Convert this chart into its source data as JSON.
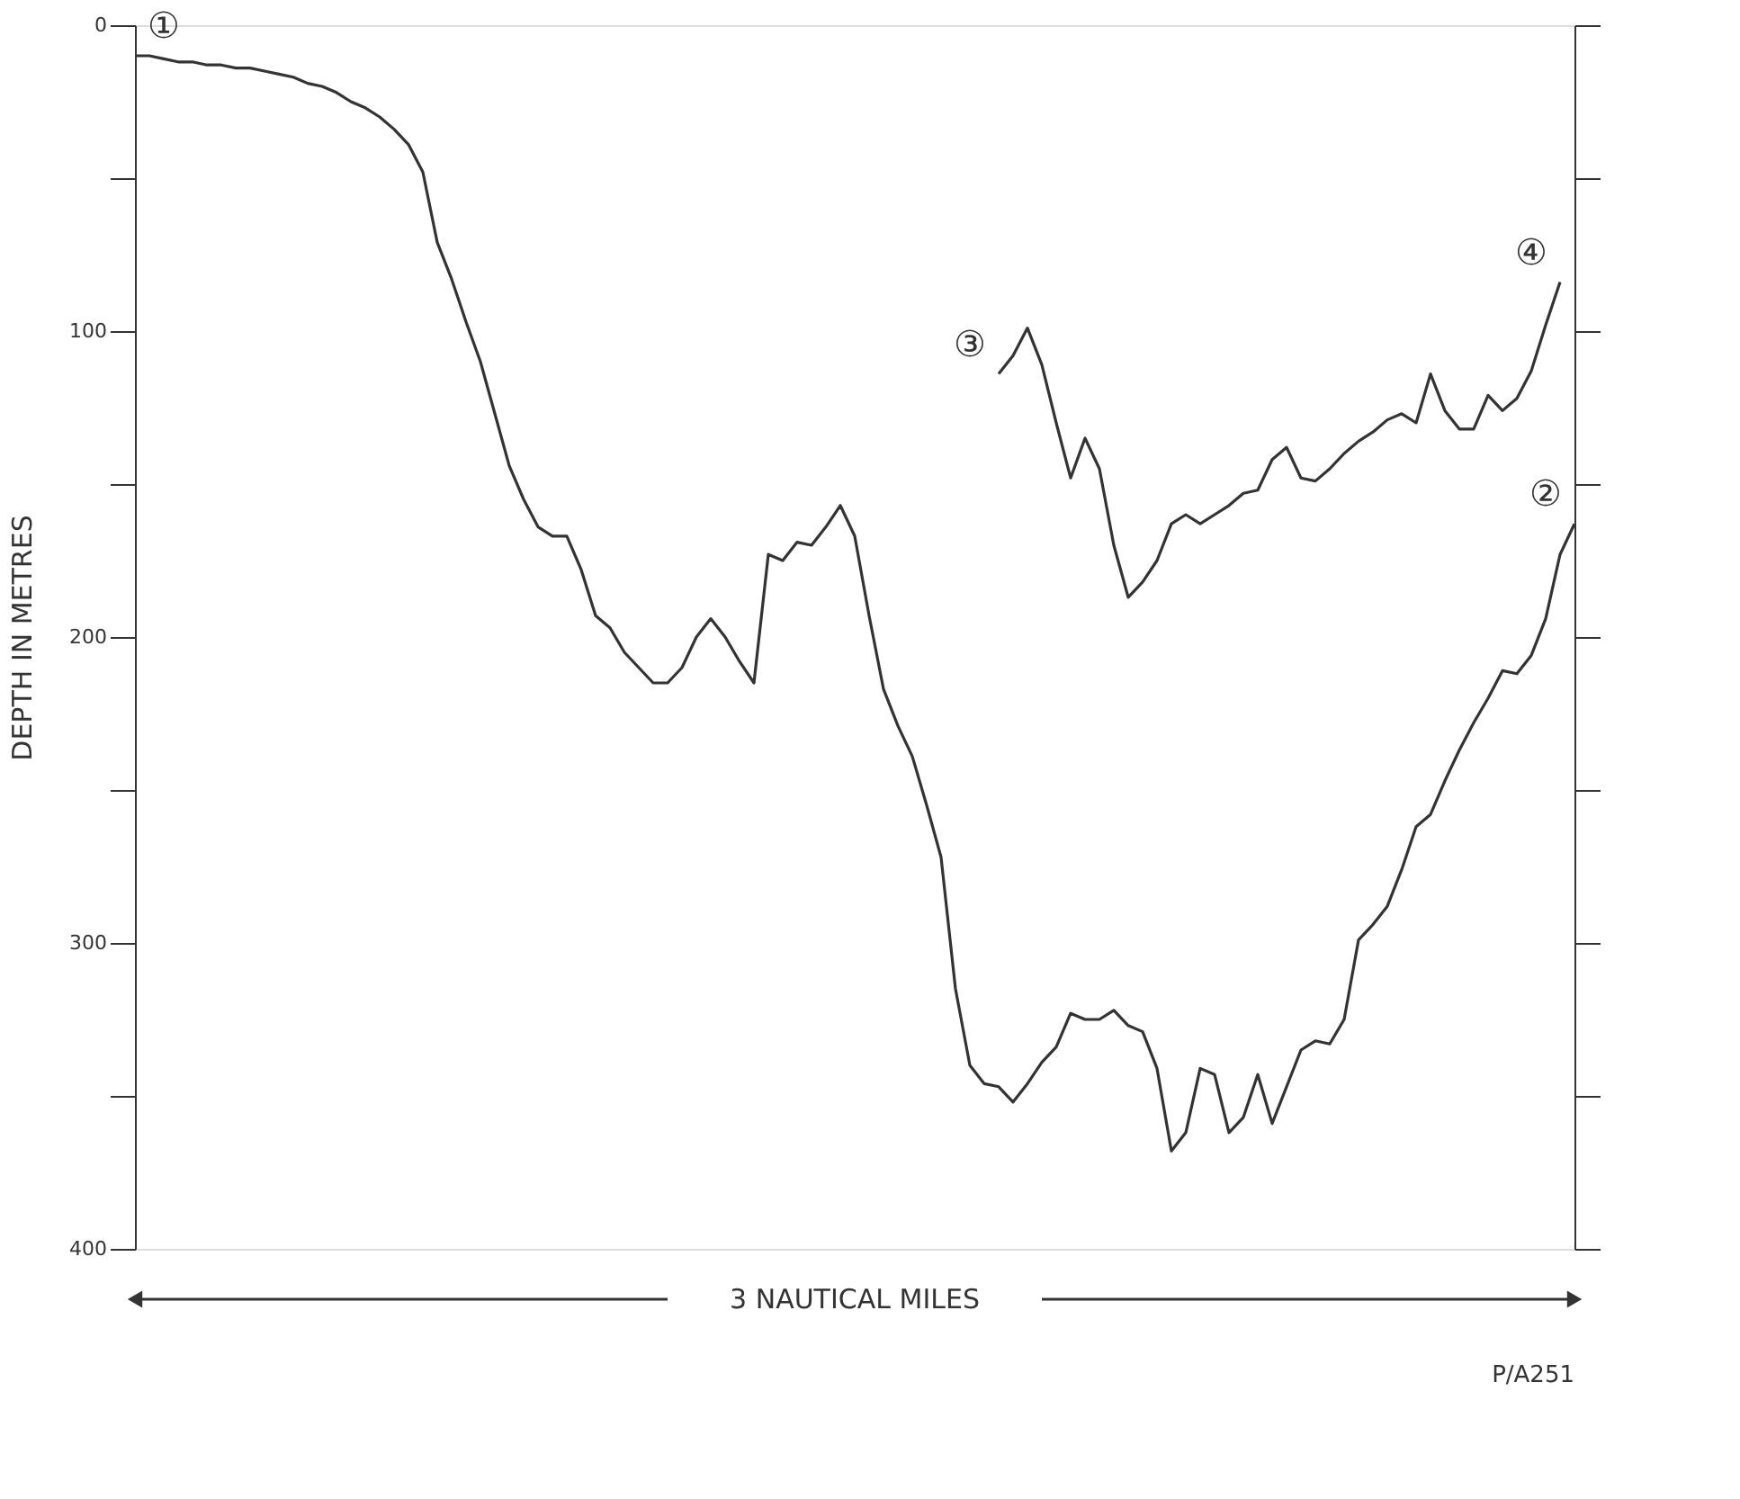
{
  "chart_data": {
    "type": "line",
    "ylabel": "DEPTH IN METRES",
    "xlabel": "3 NAUTICAL MILES",
    "categories": [
      null,
      null,
      null,
      null,
      null,
      null,
      null,
      null,
      null,
      null,
      null,
      null,
      null,
      null,
      null,
      null,
      null,
      null,
      null,
      null,
      null,
      null,
      null,
      null,
      null,
      null,
      null,
      null,
      null,
      null,
      null,
      null,
      null,
      null,
      null,
      null,
      null,
      null,
      null,
      null,
      null,
      null,
      null,
      null,
      null,
      null,
      null,
      null,
      null,
      null,
      null,
      null,
      null,
      null,
      null,
      null,
      null,
      null,
      null,
      null,
      null,
      null,
      null,
      null,
      null,
      null,
      null,
      null,
      null,
      null,
      null,
      null,
      null,
      null,
      null,
      null,
      null,
      null,
      null,
      null,
      null,
      null,
      null,
      null,
      null,
      null,
      null,
      null,
      null,
      null,
      null,
      null,
      null,
      null,
      null,
      null,
      null,
      null,
      null,
      null,
      null
    ],
    "ylim": [
      400,
      0
    ],
    "yticks": [
      0,
      {
        "value": 50,
        "label": null
      },
      100,
      {
        "value": 150,
        "label": null
      },
      200,
      {
        "value": 250,
        "label": null
      },
      300,
      {
        "value": 350,
        "label": null
      },
      400
    ],
    "tick_labels": "y",
    "grid": false,
    "marker": "none",
    "line_style": "solid",
    "series": [
      {
        "color": "#333333",
        "values": [
          10,
          10,
          11,
          12,
          12,
          13,
          13,
          14,
          14,
          15,
          16,
          17,
          19,
          20,
          22,
          25,
          27,
          30,
          34,
          39,
          48,
          71,
          83,
          97,
          110,
          127,
          144,
          155,
          164,
          167,
          167,
          178,
          193,
          197,
          205,
          210,
          215,
          215,
          210,
          200,
          194,
          200,
          208,
          215,
          173,
          175,
          169,
          170,
          164,
          157,
          167,
          193,
          217,
          229,
          239,
          255,
          272,
          315,
          340,
          346,
          347,
          352,
          346,
          339,
          334,
          323,
          325,
          325,
          322,
          327,
          329,
          341,
          368,
          362,
          341,
          343,
          362,
          357,
          343,
          359,
          347,
          335,
          332,
          333,
          325,
          299,
          294,
          288,
          276,
          262,
          258,
          247,
          237,
          228,
          220,
          211,
          212,
          206,
          194,
          173,
          163
        ],
        "value_labels": [
          "①",
          null,
          null,
          null,
          null,
          null,
          null,
          null,
          null,
          null,
          null,
          null,
          null,
          null,
          null,
          null,
          null,
          null,
          null,
          null,
          null,
          null,
          null,
          null,
          null,
          null,
          null,
          null,
          null,
          null,
          null,
          null,
          null,
          null,
          null,
          null,
          null,
          null,
          null,
          null,
          null,
          null,
          null,
          null,
          null,
          null,
          null,
          null,
          null,
          null,
          null,
          null,
          null,
          null,
          null,
          null,
          null,
          null,
          null,
          null,
          null,
          null,
          null,
          null,
          null,
          null,
          null,
          null,
          null,
          null,
          null,
          null,
          null,
          null,
          null,
          null,
          null,
          null,
          null,
          null,
          null,
          null,
          null,
          null,
          null,
          null,
          null,
          null,
          null,
          null,
          null,
          null,
          null,
          null,
          null,
          null,
          null,
          null,
          null,
          null,
          "②"
        ]
      },
      {
        "color": "#333333",
        "values": [
          null,
          null,
          null,
          null,
          null,
          null,
          null,
          null,
          null,
          null,
          null,
          null,
          null,
          null,
          null,
          null,
          null,
          null,
          null,
          null,
          null,
          null,
          null,
          null,
          null,
          null,
          null,
          null,
          null,
          null,
          null,
          null,
          null,
          null,
          null,
          null,
          null,
          null,
          null,
          null,
          null,
          null,
          null,
          null,
          null,
          null,
          null,
          null,
          null,
          null,
          null,
          null,
          null,
          null,
          null,
          null,
          null,
          null,
          null,
          null,
          114,
          108,
          99,
          111,
          130,
          148,
          135,
          145,
          170,
          187,
          182,
          175,
          163,
          160,
          163,
          160,
          157,
          153,
          152,
          142,
          138,
          148,
          149,
          145,
          140,
          136,
          133,
          129,
          127,
          130,
          114,
          126,
          132,
          132,
          121,
          126,
          122,
          113,
          98,
          84,
          null
        ],
        "value_labels": [
          null,
          null,
          null,
          null,
          null,
          null,
          null,
          null,
          null,
          null,
          null,
          null,
          null,
          null,
          null,
          null,
          null,
          null,
          null,
          null,
          null,
          null,
          null,
          null,
          null,
          null,
          null,
          null,
          null,
          null,
          null,
          null,
          null,
          null,
          null,
          null,
          null,
          null,
          null,
          null,
          null,
          null,
          null,
          null,
          null,
          null,
          null,
          null,
          null,
          null,
          null,
          null,
          null,
          null,
          null,
          null,
          null,
          null,
          null,
          null,
          "③",
          null,
          null,
          null,
          null,
          null,
          null,
          null,
          null,
          null,
          null,
          null,
          null,
          null,
          null,
          null,
          null,
          null,
          null,
          null,
          null,
          null,
          null,
          null,
          null,
          null,
          null,
          null,
          null,
          null,
          null,
          null,
          null,
          null,
          null,
          null,
          null,
          null,
          null,
          "④",
          null
        ]
      }
    ],
    "annotations": [
      "P/A251"
    ]
  }
}
